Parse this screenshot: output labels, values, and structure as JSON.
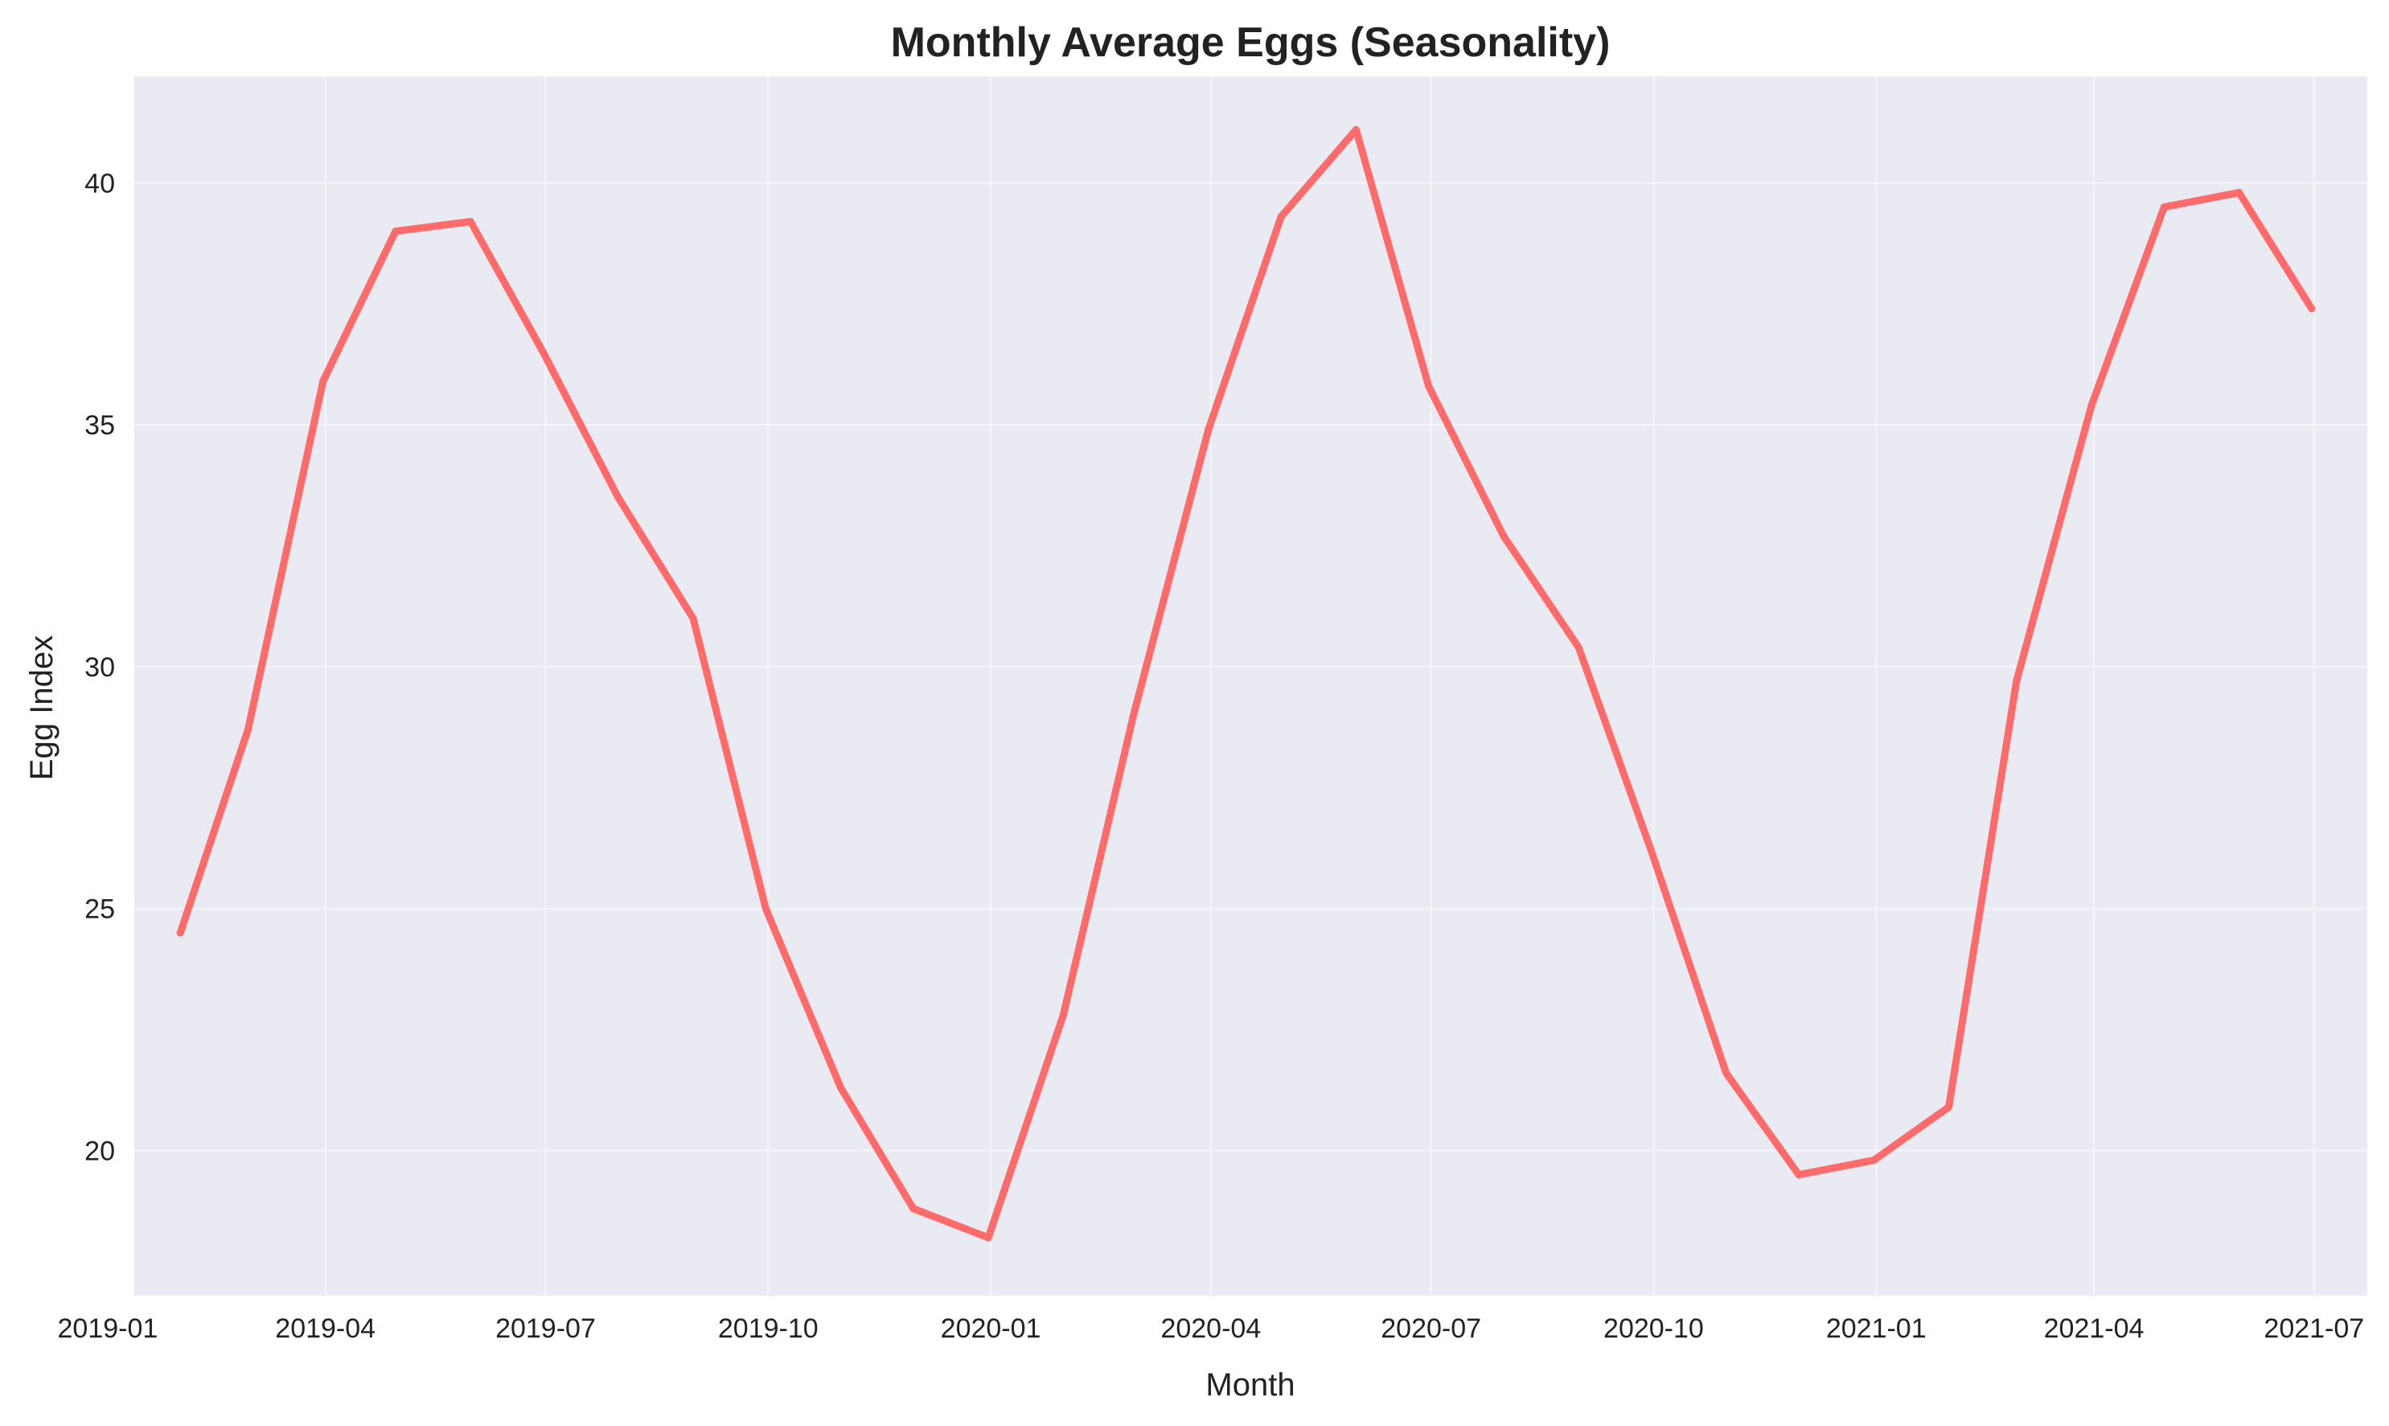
{
  "chart_data": {
    "type": "line",
    "title": "Monthly Average Eggs (Seasonality)",
    "xlabel": "Month",
    "ylabel": "Egg Index",
    "x_ticks": [
      "2019-01",
      "2019-04",
      "2019-07",
      "2019-10",
      "2020-01",
      "2020-04",
      "2020-07",
      "2020-10",
      "2021-01",
      "2021-04",
      "2021-07"
    ],
    "y_ticks": [
      20,
      25,
      30,
      35,
      40
    ],
    "xlim": [
      "2019-01-12",
      "2021-07-23"
    ],
    "ylim": [
      17.0,
      42.2
    ],
    "grid": true,
    "legend": "none",
    "colors": {
      "line": "#ff6b6b",
      "plot_bg": "#eaeaf2",
      "grid": "#ffffff",
      "text": "#222222"
    },
    "series": [
      {
        "x": [
          "2019-01-31",
          "2019-02-28",
          "2019-03-31",
          "2019-04-30",
          "2019-05-31",
          "2019-06-30",
          "2019-07-31",
          "2019-08-31",
          "2019-09-30",
          "2019-10-31",
          "2019-11-30",
          "2019-12-31",
          "2020-01-31",
          "2020-02-29",
          "2020-03-31",
          "2020-04-30",
          "2020-05-31",
          "2020-06-30",
          "2020-07-31",
          "2020-08-31",
          "2020-09-30",
          "2020-10-31",
          "2020-11-30",
          "2020-12-31",
          "2021-01-31",
          "2021-02-28",
          "2021-03-31",
          "2021-04-30",
          "2021-05-31",
          "2021-06-30"
        ],
        "values": [
          24.5,
          28.7,
          35.9,
          39.0,
          39.2,
          36.5,
          33.5,
          31.0,
          25.0,
          21.3,
          18.8,
          18.2,
          22.8,
          29.0,
          34.9,
          39.3,
          41.1,
          35.8,
          32.7,
          30.4,
          26.2,
          21.6,
          19.5,
          19.8,
          20.9,
          29.7,
          35.4,
          39.5,
          39.8,
          37.4
        ]
      }
    ]
  }
}
